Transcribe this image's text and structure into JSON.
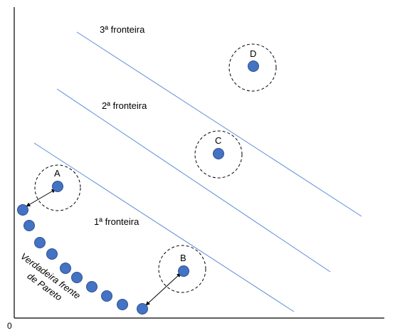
{
  "origin_label": "0",
  "frontier_labels": [
    "3ª fronteira",
    "2ª fronteira",
    "1ª fronteira"
  ],
  "points": {
    "a": "A",
    "b": "B",
    "c": "C",
    "d": "D"
  },
  "pareto_label": {
    "line1": "Verdadeira frente",
    "line2": "de Pareto"
  },
  "colors": {
    "point_fill": "#4472C4",
    "point_stroke": "#2F528F",
    "frontier_line": "#5B8DD8",
    "axis": "#000000"
  },
  "icons": {
    "arrow": "double-headed-arrow-icon"
  }
}
